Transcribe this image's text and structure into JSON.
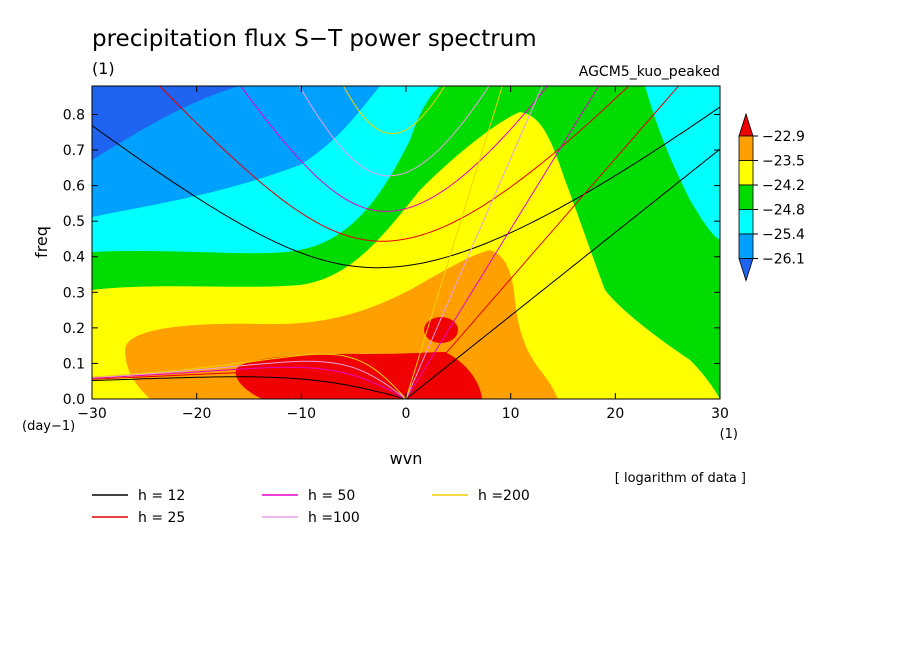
{
  "chart_data": {
    "type": "heatmap",
    "title": "precipitation flux S−T power spectrum",
    "units_label": "(1)",
    "model_label": "AGCM5_kuo_peaked",
    "xlabel": "wvn",
    "ylabel": "freq",
    "x_unit": "(1)",
    "y_unit": "(day−1)",
    "note": "[ logarithm of data ]",
    "xlim": [
      -30,
      30
    ],
    "ylim": [
      0,
      0.88
    ],
    "x_ticks": [
      -30,
      -20,
      -10,
      0,
      10,
      20,
      30
    ],
    "x_tick_labels": [
      "−30",
      "−20",
      "−10",
      "0",
      "10",
      "20",
      "30"
    ],
    "y_ticks": [
      0,
      0.1,
      0.2,
      0.3,
      0.4,
      0.5,
      0.6,
      0.7,
      0.8
    ],
    "y_tick_labels": [
      "0.0",
      "0.1",
      "0.2",
      "0.3",
      "0.4",
      "0.5",
      "0.6",
      "0.7",
      "0.8"
    ],
    "colorbar": {
      "levels": [
        "−22.9",
        "−23.5",
        "−24.2",
        "−24.8",
        "−25.4",
        "−26.1"
      ],
      "colors": [
        "#1e64f0",
        "#00a0ff",
        "#00ffff",
        "#00dc00",
        "#ffff00",
        "#ffa000",
        "#f00000"
      ]
    },
    "dispersion_curves": [
      {
        "name": "h = 12",
        "h": 12,
        "color": "#000000"
      },
      {
        "name": "h = 25",
        "h": 25,
        "color": "#e60000"
      },
      {
        "name": "h = 50",
        "h": 50,
        "color": "#e600c8"
      },
      {
        "name": "h =100",
        "h": 100,
        "color": "#e6a0e6"
      },
      {
        "name": "h =200",
        "h": 200,
        "color": "#f0d200"
      }
    ]
  }
}
